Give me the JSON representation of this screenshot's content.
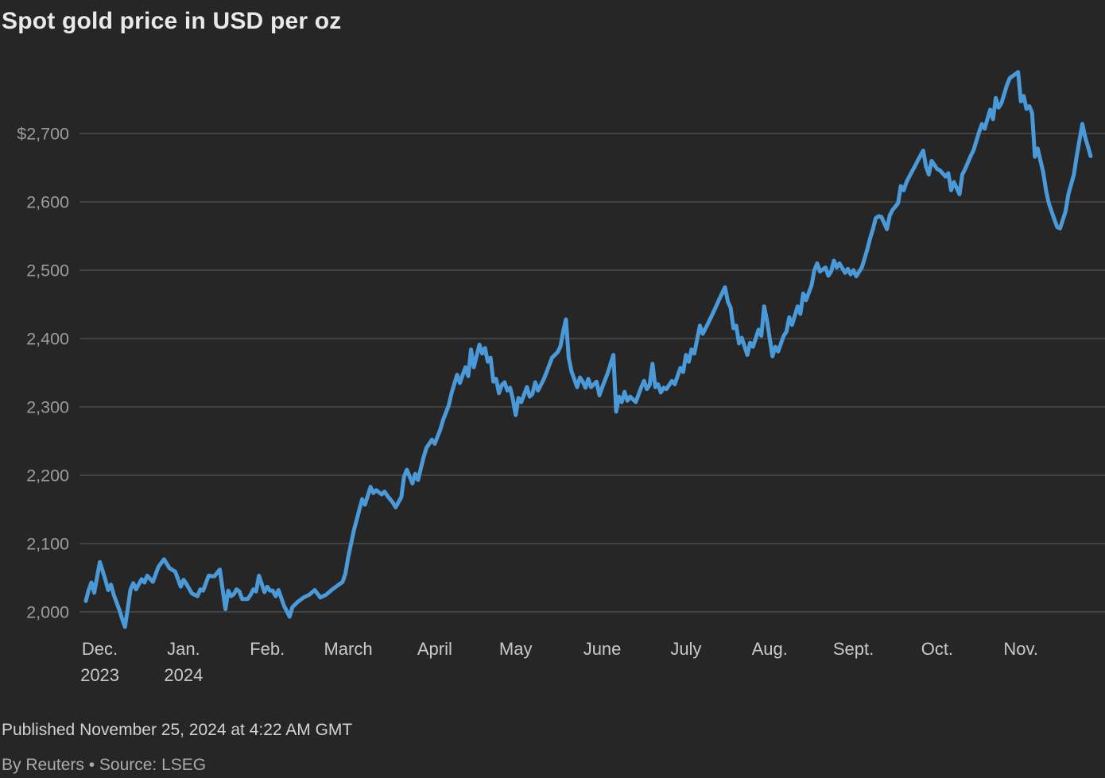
{
  "title": "Spot gold price in USD per oz",
  "footer": {
    "published": "Published November 25, 2024 at 4:22 AM GMT",
    "byline": "By Reuters • Source: LSEG"
  },
  "chart_data": {
    "type": "line",
    "title": "Spot gold price in USD per oz",
    "ylabel": "USD per oz",
    "xlabel": "",
    "legend_position": "none",
    "grid": "horizontal",
    "background_color": "#262626",
    "grid_color": "#4a4a4a",
    "line_color": "#4a9ada",
    "y_tick_color": "#9c9c9c",
    "x_tick_color": "#c8c8c8",
    "ylim": [
      1978,
      2790
    ],
    "xlim_days": [
      0,
      360
    ],
    "y_ticks": [
      {
        "value": 2700,
        "label": "$2,700"
      },
      {
        "value": 2600,
        "label": "2,600"
      },
      {
        "value": 2500,
        "label": "2,500"
      },
      {
        "value": 2400,
        "label": "2,400"
      },
      {
        "value": 2300,
        "label": "2,300"
      },
      {
        "value": 2200,
        "label": "2,200"
      },
      {
        "value": 2100,
        "label": "2,100"
      },
      {
        "value": 2000,
        "label": "2,000"
      }
    ],
    "x_ticks": [
      {
        "day": 5,
        "label": "Dec.",
        "sublabel": "2023"
      },
      {
        "day": 35,
        "label": "Jan.",
        "sublabel": "2024"
      },
      {
        "day": 65,
        "label": "Feb.",
        "sublabel": ""
      },
      {
        "day": 94,
        "label": "March",
        "sublabel": ""
      },
      {
        "day": 125,
        "label": "April",
        "sublabel": ""
      },
      {
        "day": 154,
        "label": "May",
        "sublabel": ""
      },
      {
        "day": 185,
        "label": "June",
        "sublabel": ""
      },
      {
        "day": 215,
        "label": "July",
        "sublabel": ""
      },
      {
        "day": 245,
        "label": "Aug.",
        "sublabel": ""
      },
      {
        "day": 275,
        "label": "Sept.",
        "sublabel": ""
      },
      {
        "day": 305,
        "label": "Oct.",
        "sublabel": ""
      },
      {
        "day": 335,
        "label": "Nov.",
        "sublabel": ""
      }
    ],
    "series": [
      {
        "name": "Spot gold price (USD per oz)",
        "points": [
          [
            0,
            2016
          ],
          [
            1,
            2032
          ],
          [
            2,
            2043
          ],
          [
            3,
            2028
          ],
          [
            5,
            2073
          ],
          [
            6,
            2060
          ],
          [
            7,
            2047
          ],
          [
            8,
            2032
          ],
          [
            9,
            2040
          ],
          [
            10,
            2025
          ],
          [
            12,
            2003
          ],
          [
            13,
            1990
          ],
          [
            14,
            1978
          ],
          [
            15,
            2005
          ],
          [
            16,
            2033
          ],
          [
            17,
            2042
          ],
          [
            18,
            2033
          ],
          [
            20,
            2048
          ],
          [
            21,
            2043
          ],
          [
            22,
            2053
          ],
          [
            24,
            2044
          ],
          [
            26,
            2066
          ],
          [
            28,
            2077
          ],
          [
            30,
            2064
          ],
          [
            32,
            2059
          ],
          [
            34,
            2037
          ],
          [
            35,
            2047
          ],
          [
            36,
            2041
          ],
          [
            38,
            2027
          ],
          [
            40,
            2023
          ],
          [
            41,
            2033
          ],
          [
            42,
            2031
          ],
          [
            44,
            2053
          ],
          [
            46,
            2052
          ],
          [
            48,
            2062
          ],
          [
            50,
            2004
          ],
          [
            51,
            2031
          ],
          [
            52,
            2023
          ],
          [
            53,
            2026
          ],
          [
            54,
            2033
          ],
          [
            55,
            2030
          ],
          [
            56,
            2019
          ],
          [
            58,
            2019
          ],
          [
            59,
            2025
          ],
          [
            60,
            2033
          ],
          [
            61,
            2030
          ],
          [
            62,
            2053
          ],
          [
            63,
            2041
          ],
          [
            64,
            2029
          ],
          [
            65,
            2037
          ],
          [
            66,
            2031
          ],
          [
            67,
            2031
          ],
          [
            68,
            2023
          ],
          [
            69,
            2032
          ],
          [
            71,
            2009
          ],
          [
            73,
            1993
          ],
          [
            74,
            2007
          ],
          [
            76,
            2015
          ],
          [
            78,
            2021
          ],
          [
            80,
            2025
          ],
          [
            82,
            2032
          ],
          [
            84,
            2021
          ],
          [
            86,
            2025
          ],
          [
            88,
            2032
          ],
          [
            90,
            2038
          ],
          [
            92,
            2044
          ],
          [
            93,
            2056
          ],
          [
            94,
            2080
          ],
          [
            96,
            2119
          ],
          [
            98,
            2150
          ],
          [
            99,
            2165
          ],
          [
            100,
            2157
          ],
          [
            102,
            2183
          ],
          [
            103,
            2174
          ],
          [
            104,
            2178
          ],
          [
            106,
            2172
          ],
          [
            107,
            2176
          ],
          [
            108,
            2170
          ],
          [
            110,
            2160
          ],
          [
            111,
            2153
          ],
          [
            113,
            2168
          ],
          [
            114,
            2198
          ],
          [
            115,
            2208
          ],
          [
            117,
            2188
          ],
          [
            118,
            2202
          ],
          [
            119,
            2193
          ],
          [
            121,
            2226
          ],
          [
            122,
            2240
          ],
          [
            124,
            2252
          ],
          [
            125,
            2246
          ],
          [
            127,
            2267
          ],
          [
            128,
            2281
          ],
          [
            130,
            2302
          ],
          [
            131,
            2320
          ],
          [
            133,
            2347
          ],
          [
            134,
            2335
          ],
          [
            136,
            2358
          ],
          [
            137,
            2345
          ],
          [
            138,
            2384
          ],
          [
            139,
            2358
          ],
          [
            141,
            2391
          ],
          [
            142,
            2378
          ],
          [
            143,
            2386
          ],
          [
            144,
            2366
          ],
          [
            145,
            2372
          ],
          [
            146,
            2337
          ],
          [
            147,
            2341
          ],
          [
            148,
            2320
          ],
          [
            149,
            2332
          ],
          [
            150,
            2336
          ],
          [
            151,
            2324
          ],
          [
            152,
            2328
          ],
          [
            153,
            2311
          ],
          [
            154,
            2288
          ],
          [
            155,
            2313
          ],
          [
            156,
            2307
          ],
          [
            158,
            2329
          ],
          [
            159,
            2315
          ],
          [
            160,
            2319
          ],
          [
            161,
            2336
          ],
          [
            162,
            2324
          ],
          [
            164,
            2340
          ],
          [
            165,
            2350
          ],
          [
            167,
            2372
          ],
          [
            169,
            2380
          ],
          [
            170,
            2388
          ],
          [
            171,
            2410
          ],
          [
            172,
            2428
          ],
          [
            173,
            2372
          ],
          [
            174,
            2352
          ],
          [
            176,
            2329
          ],
          [
            177,
            2343
          ],
          [
            178,
            2337
          ],
          [
            179,
            2328
          ],
          [
            180,
            2341
          ],
          [
            181,
            2329
          ],
          [
            183,
            2337
          ],
          [
            184,
            2317
          ],
          [
            185,
            2329
          ],
          [
            187,
            2350
          ],
          [
            189,
            2376
          ],
          [
            190,
            2293
          ],
          [
            191,
            2315
          ],
          [
            192,
            2307
          ],
          [
            193,
            2322
          ],
          [
            194,
            2309
          ],
          [
            195,
            2315
          ],
          [
            197,
            2307
          ],
          [
            199,
            2329
          ],
          [
            200,
            2338
          ],
          [
            201,
            2326
          ],
          [
            202,
            2332
          ],
          [
            203,
            2363
          ],
          [
            204,
            2329
          ],
          [
            205,
            2333
          ],
          [
            206,
            2321
          ],
          [
            207,
            2328
          ],
          [
            208,
            2326
          ],
          [
            210,
            2338
          ],
          [
            211,
            2333
          ],
          [
            213,
            2357
          ],
          [
            214,
            2351
          ],
          [
            215,
            2376
          ],
          [
            216,
            2366
          ],
          [
            217,
            2384
          ],
          [
            218,
            2378
          ],
          [
            220,
            2419
          ],
          [
            221,
            2407
          ],
          [
            223,
            2423
          ],
          [
            225,
            2440
          ],
          [
            227,
            2458
          ],
          [
            229,
            2475
          ],
          [
            230,
            2454
          ],
          [
            231,
            2445
          ],
          [
            232,
            2415
          ],
          [
            233,
            2419
          ],
          [
            234,
            2393
          ],
          [
            235,
            2401
          ],
          [
            237,
            2376
          ],
          [
            238,
            2394
          ],
          [
            239,
            2388
          ],
          [
            241,
            2413
          ],
          [
            242,
            2404
          ],
          [
            243,
            2447
          ],
          [
            244,
            2427
          ],
          [
            246,
            2374
          ],
          [
            247,
            2388
          ],
          [
            248,
            2381
          ],
          [
            250,
            2404
          ],
          [
            251,
            2410
          ],
          [
            252,
            2431
          ],
          [
            253,
            2420
          ],
          [
            255,
            2447
          ],
          [
            256,
            2436
          ],
          [
            257,
            2466
          ],
          [
            258,
            2456
          ],
          [
            260,
            2478
          ],
          [
            261,
            2500
          ],
          [
            262,
            2510
          ],
          [
            263,
            2498
          ],
          [
            265,
            2504
          ],
          [
            266,
            2492
          ],
          [
            267,
            2498
          ],
          [
            268,
            2514
          ],
          [
            269,
            2504
          ],
          [
            270,
            2510
          ],
          [
            272,
            2496
          ],
          [
            273,
            2502
          ],
          [
            274,
            2494
          ],
          [
            275,
            2500
          ],
          [
            276,
            2491
          ],
          [
            278,
            2504
          ],
          [
            279,
            2517
          ],
          [
            280,
            2531
          ],
          [
            281,
            2547
          ],
          [
            282,
            2560
          ],
          [
            283,
            2576
          ],
          [
            284,
            2579
          ],
          [
            285,
            2578
          ],
          [
            287,
            2560
          ],
          [
            288,
            2580
          ],
          [
            289,
            2588
          ],
          [
            291,
            2598
          ],
          [
            292,
            2623
          ],
          [
            293,
            2617
          ],
          [
            294,
            2629
          ],
          [
            295,
            2637
          ],
          [
            297,
            2652
          ],
          [
            298,
            2660
          ],
          [
            300,
            2675
          ],
          [
            301,
            2652
          ],
          [
            302,
            2640
          ],
          [
            303,
            2660
          ],
          [
            305,
            2648
          ],
          [
            306,
            2646
          ],
          [
            308,
            2637
          ],
          [
            309,
            2642
          ],
          [
            310,
            2617
          ],
          [
            311,
            2629
          ],
          [
            313,
            2611
          ],
          [
            314,
            2640
          ],
          [
            315,
            2648
          ],
          [
            317,
            2667
          ],
          [
            318,
            2675
          ],
          [
            320,
            2702
          ],
          [
            321,
            2714
          ],
          [
            322,
            2707
          ],
          [
            324,
            2735
          ],
          [
            325,
            2721
          ],
          [
            326,
            2752
          ],
          [
            327,
            2738
          ],
          [
            328,
            2744
          ],
          [
            330,
            2771
          ],
          [
            331,
            2781
          ],
          [
            334,
            2790
          ],
          [
            335,
            2747
          ],
          [
            336,
            2755
          ],
          [
            337,
            2736
          ],
          [
            338,
            2740
          ],
          [
            339,
            2730
          ],
          [
            340,
            2666
          ],
          [
            341,
            2678
          ],
          [
            343,
            2643
          ],
          [
            344,
            2617
          ],
          [
            345,
            2598
          ],
          [
            347,
            2574
          ],
          [
            348,
            2563
          ],
          [
            349,
            2561
          ],
          [
            351,
            2586
          ],
          [
            352,
            2611
          ],
          [
            354,
            2640
          ],
          [
            355,
            2667
          ],
          [
            357,
            2714
          ],
          [
            358,
            2695
          ],
          [
            360,
            2667
          ]
        ]
      }
    ]
  }
}
